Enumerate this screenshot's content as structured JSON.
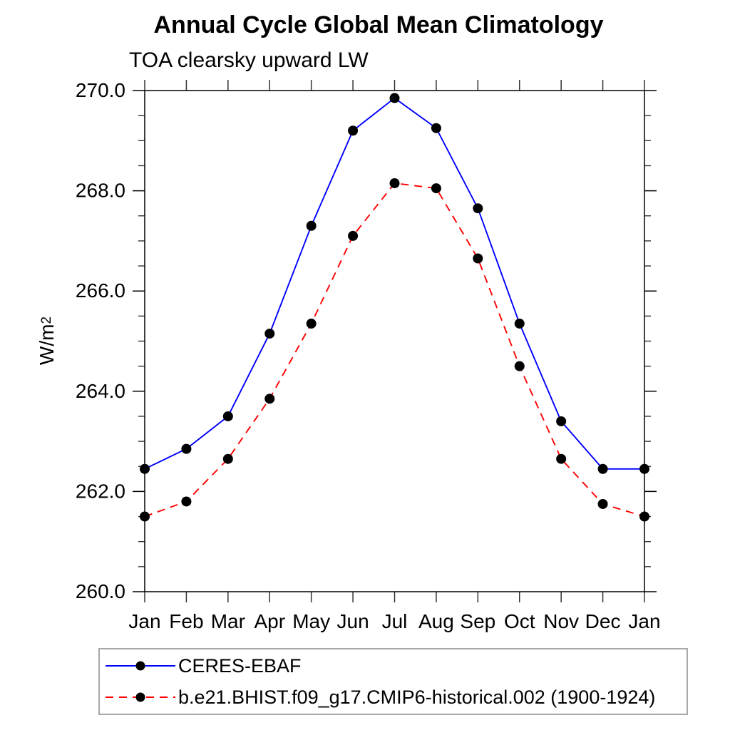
{
  "page": {
    "background": "#ffffff"
  },
  "chart_data": {
    "type": "line",
    "title": "Annual Cycle Global Mean Climatology",
    "subtitle": "TOA clearsky upward LW",
    "ylabel_base": "W/m",
    "ylabel_exponent": "2",
    "x_categories": [
      "Jan",
      "Feb",
      "Mar",
      "Apr",
      "May",
      "Jun",
      "Jul",
      "Aug",
      "Sep",
      "Oct",
      "Nov",
      "Dec",
      "Jan"
    ],
    "ylim": [
      260.0,
      270.0
    ],
    "y_major_tick_interval": 2.0,
    "y_minor_tick_interval": 0.5,
    "y_tick_labels": [
      "260.0",
      "262.0",
      "264.0",
      "266.0",
      "268.0",
      "270.0"
    ],
    "grid": false,
    "legend_position": "bottom-left",
    "series": [
      {
        "name": "CERES-EBAF",
        "color": "#0000ff",
        "style": "solid",
        "marker": "filled-circle",
        "marker_color": "#000000",
        "values": [
          262.45,
          262.85,
          263.5,
          265.15,
          267.3,
          269.2,
          269.85,
          269.25,
          267.65,
          265.35,
          263.4,
          262.45,
          262.45
        ]
      },
      {
        "name": "b.e21.BHIST.f09_g17.CMIP6-historical.002 (1900-1924)",
        "color": "#ff0000",
        "style": "dashed",
        "marker": "filled-circle",
        "marker_color": "#000000",
        "values": [
          261.5,
          261.8,
          262.65,
          263.85,
          265.35,
          267.1,
          268.15,
          268.05,
          266.65,
          264.5,
          262.65,
          261.75,
          261.5
        ]
      }
    ]
  }
}
